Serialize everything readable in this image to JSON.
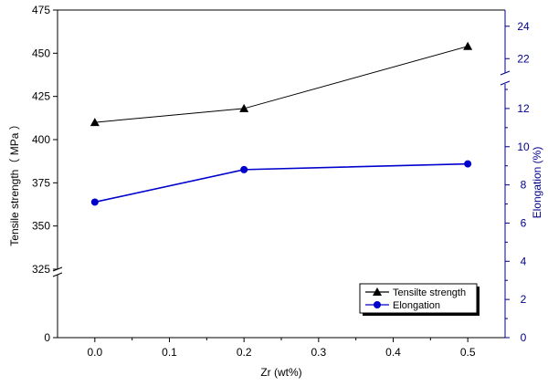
{
  "chart_data": {
    "type": "line",
    "xlabel": "Zr (wt%)",
    "ylabel_left": "Tensile strength（ MPa ）",
    "ylabel_right": "Elongation (%)",
    "x_ticks": [
      "0.0",
      "0.1",
      "0.2",
      "0.3",
      "0.4",
      "0.5"
    ],
    "x_tick_values": [
      0,
      0.1,
      0.2,
      0.3,
      0.4,
      0.5
    ],
    "xlim": [
      -0.05,
      0.55
    ],
    "left_axis": {
      "lower_segment": {
        "range": [
          0,
          325
        ],
        "ticks": [
          "0",
          "325"
        ]
      },
      "upper_segment": {
        "range": [
          325,
          475
        ],
        "ticks": [
          "325",
          "350",
          "375",
          "400",
          "425",
          "450",
          "475"
        ]
      },
      "break_at": 325
    },
    "right_axis": {
      "lower_segment": {
        "range": [
          0,
          13
        ],
        "ticks": [
          "0",
          "2",
          "4",
          "6",
          "8",
          "10",
          "12"
        ]
      },
      "upper_segment": {
        "range": [
          21,
          25
        ],
        "ticks": [
          "22",
          "24"
        ]
      },
      "break_at": [
        13,
        21
      ],
      "color": "#00008b"
    },
    "series": [
      {
        "name": "Tensilte strength",
        "axis": "left",
        "color": "#000000",
        "marker": "triangle",
        "x": [
          0,
          0.2,
          0.5
        ],
        "y": [
          410,
          418,
          454
        ]
      },
      {
        "name": "Elongation",
        "axis": "right",
        "color": "#0000cc",
        "marker": "circle",
        "x": [
          0,
          0.2,
          0.5
        ],
        "y": [
          7.1,
          8.8,
          9.1
        ]
      }
    ],
    "legend_position": "bottom-right",
    "grid": false
  }
}
